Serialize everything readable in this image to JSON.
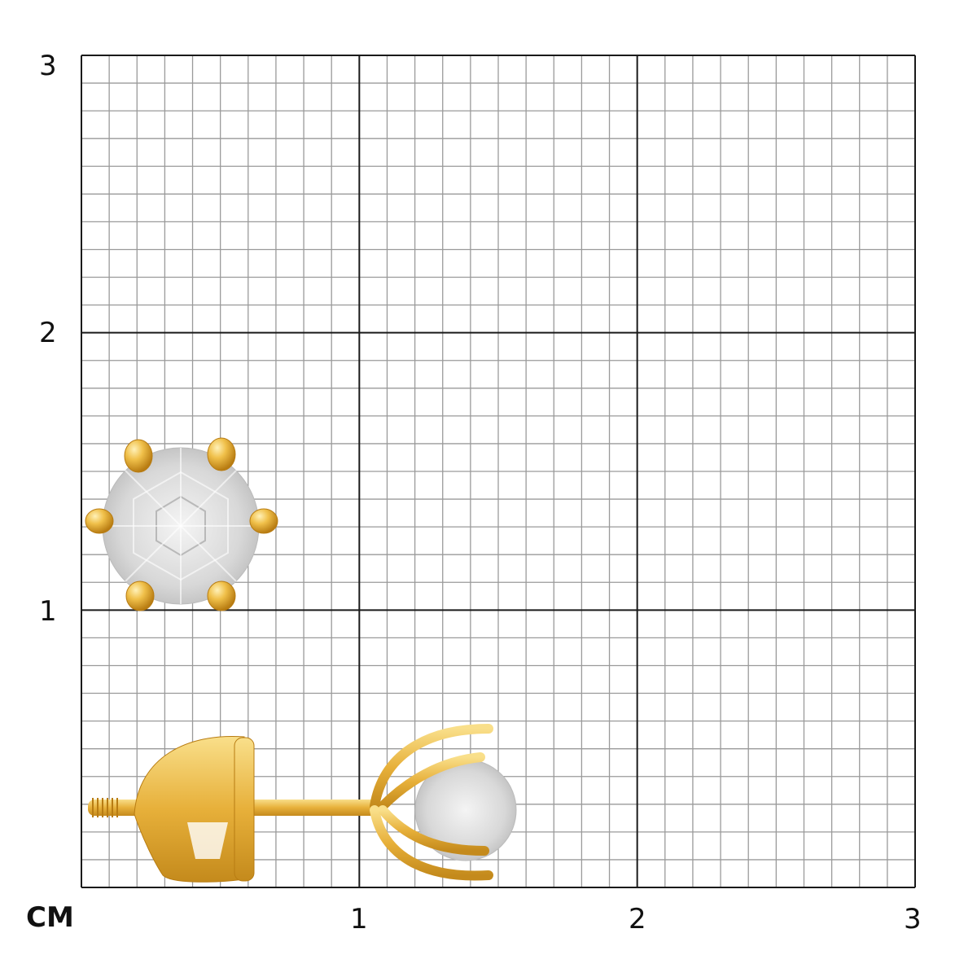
{
  "scale": {
    "unit_label": "СМ",
    "x_ticks": [
      "1",
      "2",
      "3"
    ],
    "y_ticks": [
      "1",
      "2",
      "3"
    ],
    "range_cm": [
      0,
      3
    ],
    "minor_divisions_per_cm": 10
  },
  "colors": {
    "minor_grid": "#9a9a9a",
    "major_grid": "#1a1a1a",
    "gold": "#e2a92c",
    "gold_light": "#f7d67a",
    "gold_dark": "#b87c12",
    "stone": "#d9d9d9"
  },
  "product": {
    "views": [
      "top-view-earring",
      "side-view-earring"
    ]
  }
}
